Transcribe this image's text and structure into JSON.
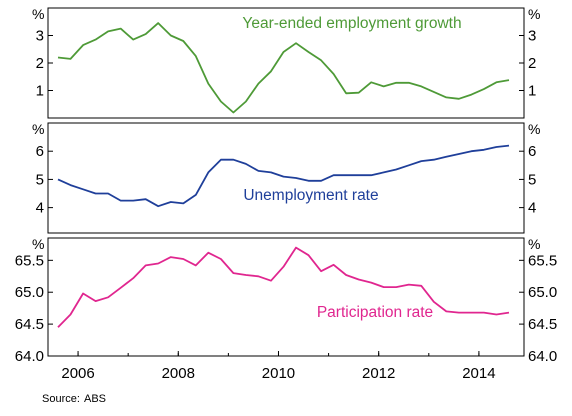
{
  "source": {
    "label": "Source:",
    "value": "ABS"
  },
  "chart_data": {
    "type": "line",
    "x_axis": {
      "ticks": [
        2006,
        2008,
        2010,
        2012,
        2014
      ],
      "range": [
        2005.4,
        2014.9
      ]
    },
    "panels": [
      {
        "unit": "%",
        "ylim": [
          0,
          4
        ],
        "ticks": [
          1,
          2,
          3
        ],
        "tick_labels": [
          "1",
          "2",
          "3"
        ],
        "grid": false,
        "series": {
          "name": "Year-ended employment growth",
          "color": "#4e9a37",
          "x": [
            2005.6,
            2005.85,
            2006.1,
            2006.35,
            2006.6,
            2006.85,
            2007.1,
            2007.35,
            2007.6,
            2007.85,
            2008.1,
            2008.35,
            2008.6,
            2008.85,
            2009.1,
            2009.35,
            2009.6,
            2009.85,
            2010.1,
            2010.35,
            2010.6,
            2010.85,
            2011.1,
            2011.35,
            2011.6,
            2011.85,
            2012.1,
            2012.35,
            2012.6,
            2012.85,
            2013.1,
            2013.35,
            2013.6,
            2013.85,
            2014.1,
            2014.35,
            2014.6
          ],
          "y": [
            2.2,
            2.15,
            2.65,
            2.85,
            3.15,
            3.25,
            2.85,
            3.05,
            3.45,
            3.0,
            2.8,
            2.25,
            1.25,
            0.6,
            0.2,
            0.6,
            1.25,
            1.7,
            2.4,
            2.72,
            2.4,
            2.1,
            1.6,
            0.9,
            0.92,
            1.3,
            1.15,
            1.28,
            1.28,
            1.15,
            0.95,
            0.75,
            0.7,
            0.85,
            1.05,
            1.3,
            1.38
          ]
        },
        "label_position": "top-center"
      },
      {
        "unit": "%",
        "ylim": [
          3.1,
          7.0
        ],
        "ticks": [
          4,
          5,
          6
        ],
        "tick_labels": [
          "4",
          "5",
          "6"
        ],
        "grid": false,
        "series": {
          "name": "Unemployment rate",
          "color": "#1f3f9a",
          "x": [
            2005.6,
            2005.85,
            2006.1,
            2006.35,
            2006.6,
            2006.85,
            2007.1,
            2007.35,
            2007.6,
            2007.85,
            2008.1,
            2008.35,
            2008.6,
            2008.85,
            2009.1,
            2009.35,
            2009.6,
            2009.85,
            2010.1,
            2010.35,
            2010.6,
            2010.85,
            2011.1,
            2011.35,
            2011.6,
            2011.85,
            2012.1,
            2012.35,
            2012.6,
            2012.85,
            2013.1,
            2013.35,
            2013.6,
            2013.85,
            2014.1,
            2014.35,
            2014.6
          ],
          "y": [
            5.0,
            4.8,
            4.65,
            4.5,
            4.5,
            4.25,
            4.25,
            4.3,
            4.05,
            4.2,
            4.15,
            4.45,
            5.25,
            5.7,
            5.7,
            5.55,
            5.3,
            5.25,
            5.1,
            5.05,
            4.95,
            4.95,
            5.15,
            5.15,
            5.15,
            5.15,
            5.25,
            5.35,
            5.5,
            5.65,
            5.7,
            5.8,
            5.9,
            6.0,
            6.05,
            6.15,
            6.2
          ]
        },
        "label_position": "center"
      },
      {
        "unit": "%",
        "ylim": [
          64.0,
          65.85
        ],
        "ticks": [
          64.0,
          64.5,
          65.0,
          65.5
        ],
        "tick_labels": [
          "64.0",
          "64.5",
          "65.0",
          "65.5"
        ],
        "grid": false,
        "series": {
          "name": "Participation rate",
          "color": "#e0268f",
          "x": [
            2005.6,
            2005.85,
            2006.1,
            2006.35,
            2006.6,
            2006.85,
            2007.1,
            2007.35,
            2007.6,
            2007.85,
            2008.1,
            2008.35,
            2008.6,
            2008.85,
            2009.1,
            2009.35,
            2009.6,
            2009.85,
            2010.1,
            2010.35,
            2010.6,
            2010.85,
            2011.1,
            2011.35,
            2011.6,
            2011.85,
            2012.1,
            2012.35,
            2012.6,
            2012.85,
            2013.1,
            2013.35,
            2013.6,
            2013.85,
            2014.1,
            2014.35,
            2014.6
          ],
          "y": [
            64.45,
            64.65,
            64.98,
            64.86,
            64.92,
            65.07,
            65.22,
            65.42,
            65.45,
            65.55,
            65.52,
            65.42,
            65.62,
            65.52,
            65.3,
            65.27,
            65.25,
            65.18,
            65.4,
            65.7,
            65.58,
            65.33,
            65.43,
            65.27,
            65.2,
            65.15,
            65.08,
            65.08,
            65.12,
            65.1,
            64.85,
            64.7,
            64.68,
            64.68,
            64.68,
            64.65,
            64.68
          ]
        },
        "label_position": "bottom-right"
      }
    ]
  }
}
